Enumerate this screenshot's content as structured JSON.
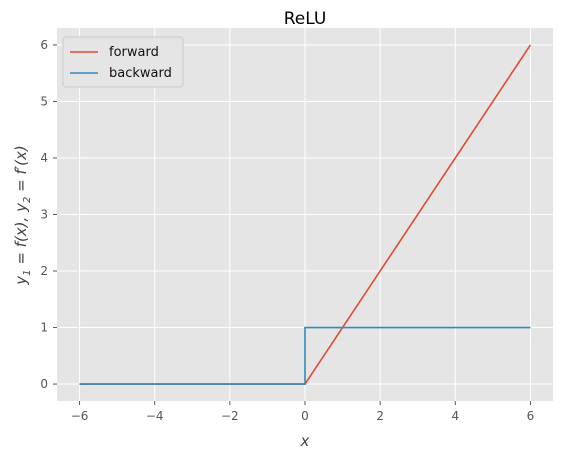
{
  "chart_data": {
    "type": "line",
    "title": "ReLU",
    "xlabel": "x",
    "ylabel": "y_1 = f(x), y_2 = f'(x)",
    "xlim": [
      -6.6,
      6.6
    ],
    "ylim": [
      -0.3,
      6.3
    ],
    "xticks": [
      -6,
      -4,
      -2,
      0,
      2,
      4,
      6
    ],
    "yticks": [
      0,
      1,
      2,
      3,
      4,
      5,
      6
    ],
    "xtick_labels": [
      "−6",
      "−4",
      "−2",
      "0",
      "2",
      "4",
      "6"
    ],
    "ytick_labels": [
      "0",
      "1",
      "2",
      "3",
      "4",
      "5",
      "6"
    ],
    "grid": true,
    "legend_position": "top-left",
    "series": [
      {
        "name": "forward",
        "color": "#E24A33",
        "x": [
          -6,
          0,
          6
        ],
        "y": [
          0,
          0,
          6
        ]
      },
      {
        "name": "backward",
        "color": "#348ABD",
        "x": [
          -6,
          0,
          0,
          6
        ],
        "y": [
          0,
          0,
          1,
          1
        ]
      }
    ],
    "background": "#E5E5E5"
  }
}
